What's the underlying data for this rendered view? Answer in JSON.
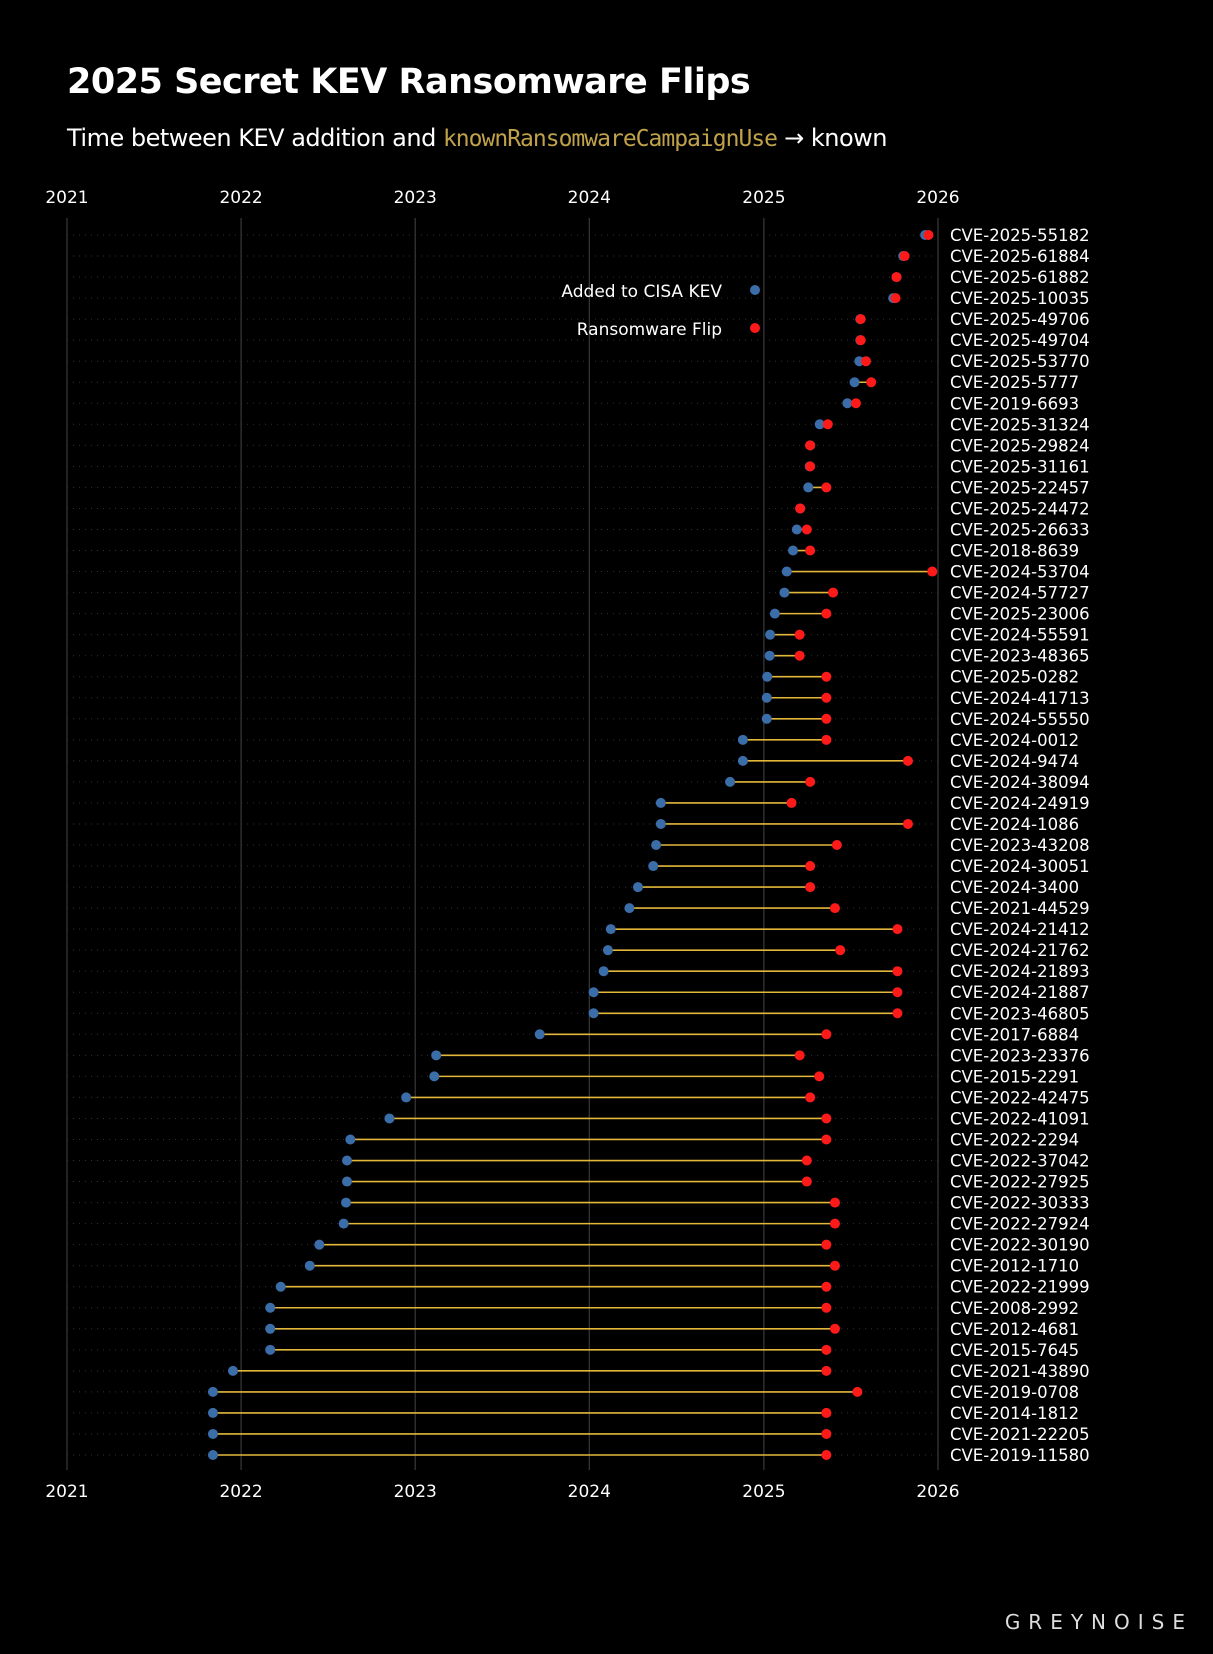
{
  "title": "2025 Secret KEV Ransomware Flips",
  "subtitle": {
    "before": "Time between KEV addition and ",
    "code": "knownRansomwareCampaignUse",
    "after": " → known"
  },
  "brand": "GREYNOISE",
  "colors": {
    "background": "#000000",
    "kev": "#3b6ea8",
    "flip": "#ff1a1a",
    "connector": "#e2b73a",
    "code": "#c0a24a"
  },
  "chart_data": {
    "type": "dumbbell",
    "title": "2025 Secret KEV Ransomware Flips",
    "x_axis": {
      "type": "date",
      "range": [
        "2021-01-01",
        "2026-01-01"
      ],
      "ticks": [
        "2021",
        "2022",
        "2023",
        "2024",
        "2025",
        "2026"
      ],
      "position": "top and bottom"
    },
    "grid": "vertical at year ticks, dotted row guides",
    "legend": {
      "placement": "top-center-right",
      "entries": [
        {
          "label": "Added to CISA KEV",
          "color": "#3b6ea8"
        },
        {
          "label": "Ransomware Flip",
          "color": "#ff1a1a"
        }
      ]
    },
    "rows": [
      {
        "cve": "CVE-2025-55182",
        "kev": "2025-12-05",
        "flip": "2025-12-12"
      },
      {
        "cve": "CVE-2025-61884",
        "kev": "2025-10-20",
        "flip": "2025-10-23"
      },
      {
        "cve": "CVE-2025-61882",
        "kev": "2025-10-06",
        "flip": "2025-10-06"
      },
      {
        "cve": "CVE-2025-10035",
        "kev": "2025-09-29",
        "flip": "2025-10-04"
      },
      {
        "cve": "CVE-2025-49706",
        "kev": "2025-07-22",
        "flip": "2025-07-23"
      },
      {
        "cve": "CVE-2025-49704",
        "kev": "2025-07-22",
        "flip": "2025-07-23"
      },
      {
        "cve": "CVE-2025-53770",
        "kev": "2025-07-20",
        "flip": "2025-08-03"
      },
      {
        "cve": "CVE-2025-5777",
        "kev": "2025-07-10",
        "flip": "2025-08-14"
      },
      {
        "cve": "CVE-2019-6693",
        "kev": "2025-06-25",
        "flip": "2025-07-13"
      },
      {
        "cve": "CVE-2025-31324",
        "kev": "2025-04-28",
        "flip": "2025-05-15"
      },
      {
        "cve": "CVE-2025-29824",
        "kev": "2025-04-08",
        "flip": "2025-04-08"
      },
      {
        "cve": "CVE-2025-31161",
        "kev": "2025-04-07",
        "flip": "2025-04-08"
      },
      {
        "cve": "CVE-2025-22457",
        "kev": "2025-04-04",
        "flip": "2025-05-12"
      },
      {
        "cve": "CVE-2025-24472",
        "kev": "2025-03-18",
        "flip": "2025-03-18"
      },
      {
        "cve": "CVE-2025-26633",
        "kev": "2025-03-11",
        "flip": "2025-04-01"
      },
      {
        "cve": "CVE-2018-8639",
        "kev": "2025-03-03",
        "flip": "2025-04-08"
      },
      {
        "cve": "CVE-2024-53704",
        "kev": "2025-02-18",
        "flip": "2025-12-20"
      },
      {
        "cve": "CVE-2024-57727",
        "kev": "2025-02-13",
        "flip": "2025-05-26"
      },
      {
        "cve": "CVE-2025-23006",
        "kev": "2025-01-24",
        "flip": "2025-05-12"
      },
      {
        "cve": "CVE-2024-55591",
        "kev": "2025-01-14",
        "flip": "2025-03-17"
      },
      {
        "cve": "CVE-2023-48365",
        "kev": "2025-01-13",
        "flip": "2025-03-17"
      },
      {
        "cve": "CVE-2025-0282",
        "kev": "2025-01-08",
        "flip": "2025-05-12"
      },
      {
        "cve": "CVE-2024-41713",
        "kev": "2025-01-07",
        "flip": "2025-05-12"
      },
      {
        "cve": "CVE-2024-55550",
        "kev": "2025-01-07",
        "flip": "2025-05-12"
      },
      {
        "cve": "CVE-2024-0012",
        "kev": "2024-11-18",
        "flip": "2025-05-12"
      },
      {
        "cve": "CVE-2024-9474",
        "kev": "2024-11-18",
        "flip": "2025-10-30"
      },
      {
        "cve": "CVE-2024-38094",
        "kev": "2024-10-22",
        "flip": "2025-04-08"
      },
      {
        "cve": "CVE-2024-24919",
        "kev": "2024-05-30",
        "flip": "2025-02-28"
      },
      {
        "cve": "CVE-2024-1086",
        "kev": "2024-05-30",
        "flip": "2025-10-30"
      },
      {
        "cve": "CVE-2023-43208",
        "kev": "2024-05-20",
        "flip": "2025-06-03"
      },
      {
        "cve": "CVE-2024-30051",
        "kev": "2024-05-14",
        "flip": "2025-04-08"
      },
      {
        "cve": "CVE-2024-3400",
        "kev": "2024-04-12",
        "flip": "2025-04-08"
      },
      {
        "cve": "CVE-2021-44529",
        "kev": "2024-03-25",
        "flip": "2025-05-30"
      },
      {
        "cve": "CVE-2024-21412",
        "kev": "2024-02-15",
        "flip": "2025-10-08"
      },
      {
        "cve": "CVE-2024-21762",
        "kev": "2024-02-09",
        "flip": "2025-06-10"
      },
      {
        "cve": "CVE-2024-21893",
        "kev": "2024-01-31",
        "flip": "2025-10-08"
      },
      {
        "cve": "CVE-2024-21887",
        "kev": "2024-01-10",
        "flip": "2025-10-08"
      },
      {
        "cve": "CVE-2023-46805",
        "kev": "2024-01-10",
        "flip": "2025-10-08"
      },
      {
        "cve": "CVE-2017-6884",
        "kev": "2023-09-19",
        "flip": "2025-05-12"
      },
      {
        "cve": "CVE-2023-23376",
        "kev": "2023-02-14",
        "flip": "2025-03-17"
      },
      {
        "cve": "CVE-2015-2291",
        "kev": "2023-02-10",
        "flip": "2025-04-27"
      },
      {
        "cve": "CVE-2022-42475",
        "kev": "2022-12-13",
        "flip": "2025-04-08"
      },
      {
        "cve": "CVE-2022-41091",
        "kev": "2022-11-08",
        "flip": "2025-05-12"
      },
      {
        "cve": "CVE-2022-2294",
        "kev": "2022-08-18",
        "flip": "2025-05-12"
      },
      {
        "cve": "CVE-2022-37042",
        "kev": "2022-08-11",
        "flip": "2025-04-01"
      },
      {
        "cve": "CVE-2022-27925",
        "kev": "2022-08-11",
        "flip": "2025-04-01"
      },
      {
        "cve": "CVE-2022-30333",
        "kev": "2022-08-09",
        "flip": "2025-05-30"
      },
      {
        "cve": "CVE-2022-27924",
        "kev": "2022-08-04",
        "flip": "2025-05-30"
      },
      {
        "cve": "CVE-2022-30190",
        "kev": "2022-06-14",
        "flip": "2025-05-12"
      },
      {
        "cve": "CVE-2012-1710",
        "kev": "2022-05-25",
        "flip": "2025-05-30"
      },
      {
        "cve": "CVE-2022-21999",
        "kev": "2022-03-25",
        "flip": "2025-05-12"
      },
      {
        "cve": "CVE-2008-2992",
        "kev": "2022-03-03",
        "flip": "2025-05-12"
      },
      {
        "cve": "CVE-2012-4681",
        "kev": "2022-03-03",
        "flip": "2025-05-30"
      },
      {
        "cve": "CVE-2015-7645",
        "kev": "2022-03-03",
        "flip": "2025-05-12"
      },
      {
        "cve": "CVE-2021-43890",
        "kev": "2021-12-15",
        "flip": "2025-05-12"
      },
      {
        "cve": "CVE-2019-0708",
        "kev": "2021-11-03",
        "flip": "2025-07-16"
      },
      {
        "cve": "CVE-2014-1812",
        "kev": "2021-11-03",
        "flip": "2025-05-12"
      },
      {
        "cve": "CVE-2021-22205",
        "kev": "2021-11-03",
        "flip": "2025-05-12"
      },
      {
        "cve": "CVE-2019-11580",
        "kev": "2021-11-03",
        "flip": "2025-05-12"
      }
    ]
  }
}
